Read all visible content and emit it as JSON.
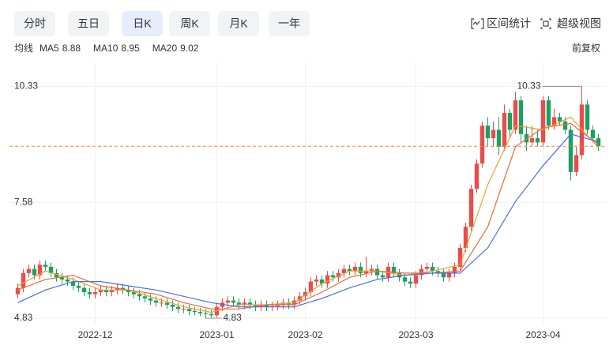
{
  "toolbar": {
    "tabs": [
      "分时",
      "五日",
      "日K",
      "周K",
      "月K",
      "一年"
    ],
    "active": 2,
    "tools": [
      "区间统计",
      "超级视图"
    ]
  },
  "ma_label": "均线",
  "adjust_label": "前复权",
  "chart_data": {
    "type": "candlestick",
    "up_color": "#ea4b4b",
    "down_color": "#1d9f63",
    "open": [
      5.4,
      5.55,
      5.9,
      6.0,
      5.85,
      6.1,
      6.05,
      5.9,
      5.8,
      5.75,
      5.7,
      5.6,
      5.55,
      5.45,
      5.4,
      5.45,
      5.5,
      5.45,
      5.5,
      5.55,
      5.5,
      5.45,
      5.4,
      5.35,
      5.3,
      5.25,
      5.2,
      5.2,
      5.15,
      5.1,
      5.05,
      5.05,
      5.0,
      4.98,
      4.95,
      4.93,
      4.9,
      5.1,
      5.2,
      5.25,
      5.2,
      5.15,
      5.2,
      5.15,
      5.1,
      5.15,
      5.1,
      5.12,
      5.15,
      5.2,
      5.15,
      5.25,
      5.35,
      5.45,
      5.7,
      5.75,
      5.65,
      5.85,
      5.8,
      5.9,
      6.0,
      5.95,
      6.05,
      5.9,
      5.95,
      6.0,
      5.85,
      5.8,
      6.05,
      5.9,
      5.8,
      5.7,
      5.65,
      5.85,
      6.0,
      6.05,
      5.95,
      5.9,
      5.8,
      5.9,
      6.05,
      6.5,
      7.0,
      7.9,
      8.5,
      9.4,
      9.1,
      9.3,
      8.9,
      9.7,
      9.3,
      10.0,
      9.2,
      9.0,
      9.1,
      9.0,
      10.0,
      9.4,
      9.6,
      9.5,
      9.3,
      8.3,
      8.7,
      9.9,
      9.3,
      9.1
    ],
    "high": [
      5.65,
      6.0,
      6.1,
      6.1,
      6.2,
      6.2,
      6.15,
      6.0,
      5.9,
      5.85,
      5.8,
      5.7,
      5.65,
      5.55,
      5.55,
      5.6,
      5.6,
      5.6,
      5.65,
      5.65,
      5.6,
      5.55,
      5.5,
      5.45,
      5.4,
      5.35,
      5.3,
      5.3,
      5.25,
      5.2,
      5.15,
      5.15,
      5.1,
      5.08,
      5.05,
      5.03,
      5.2,
      5.3,
      5.35,
      5.35,
      5.3,
      5.3,
      5.3,
      5.25,
      5.25,
      5.25,
      5.22,
      5.25,
      5.3,
      5.3,
      5.35,
      5.45,
      5.55,
      5.8,
      5.85,
      5.85,
      5.95,
      5.95,
      6.0,
      6.1,
      6.1,
      6.15,
      6.15,
      6.3,
      6.1,
      6.1,
      5.95,
      6.15,
      6.15,
      6.0,
      5.9,
      5.8,
      5.95,
      6.1,
      6.15,
      6.15,
      6.05,
      6.0,
      6.0,
      6.15,
      6.6,
      7.1,
      8.0,
      8.6,
      9.5,
      9.6,
      9.5,
      9.6,
      9.9,
      9.8,
      10.2,
      10.1,
      9.4,
      9.4,
      9.3,
      10.1,
      10.1,
      9.8,
      9.7,
      9.6,
      9.4,
      8.9,
      10.33,
      10.0,
      9.4,
      9.2
    ],
    "low": [
      5.3,
      5.45,
      5.8,
      5.75,
      5.75,
      5.95,
      5.8,
      5.7,
      5.65,
      5.6,
      5.5,
      5.45,
      5.35,
      5.3,
      5.3,
      5.35,
      5.35,
      5.35,
      5.4,
      5.4,
      5.35,
      5.3,
      5.25,
      5.2,
      5.15,
      5.1,
      5.1,
      5.05,
      5.0,
      4.95,
      4.95,
      4.9,
      4.9,
      4.88,
      4.83,
      4.85,
      4.85,
      5.0,
      5.1,
      5.1,
      5.05,
      5.05,
      5.05,
      5.0,
      5.0,
      5.0,
      5.0,
      5.02,
      5.05,
      5.05,
      5.05,
      5.15,
      5.25,
      5.35,
      5.6,
      5.55,
      5.55,
      5.7,
      5.7,
      5.8,
      5.85,
      5.85,
      5.8,
      5.8,
      5.85,
      5.75,
      5.7,
      5.7,
      5.8,
      5.7,
      5.6,
      5.55,
      5.55,
      5.75,
      5.9,
      5.85,
      5.8,
      5.7,
      5.7,
      5.8,
      5.95,
      6.4,
      6.9,
      7.8,
      8.4,
      8.9,
      8.9,
      8.7,
      8.8,
      9.1,
      9.2,
      9.0,
      8.8,
      8.9,
      8.9,
      8.9,
      9.3,
      9.3,
      9.4,
      9.2,
      8.1,
      8.2,
      8.6,
      9.2,
      9.0,
      8.8
    ],
    "close": [
      5.55,
      5.9,
      6.0,
      5.85,
      6.1,
      6.05,
      5.9,
      5.8,
      5.75,
      5.7,
      5.6,
      5.55,
      5.45,
      5.4,
      5.45,
      5.5,
      5.45,
      5.5,
      5.55,
      5.5,
      5.45,
      5.4,
      5.35,
      5.3,
      5.25,
      5.2,
      5.2,
      5.15,
      5.1,
      5.05,
      5.05,
      5.0,
      4.98,
      4.95,
      4.93,
      4.9,
      5.1,
      5.2,
      5.25,
      5.2,
      5.15,
      5.2,
      5.15,
      5.1,
      5.15,
      5.1,
      5.12,
      5.15,
      5.2,
      5.15,
      5.25,
      5.35,
      5.45,
      5.7,
      5.75,
      5.65,
      5.85,
      5.8,
      5.9,
      6.0,
      5.95,
      6.05,
      5.9,
      5.95,
      6.0,
      5.85,
      5.8,
      6.05,
      5.9,
      5.8,
      5.7,
      5.65,
      5.85,
      6.0,
      6.05,
      5.95,
      5.9,
      5.8,
      5.9,
      6.05,
      6.5,
      7.0,
      7.9,
      8.5,
      9.4,
      9.1,
      9.3,
      8.9,
      9.7,
      9.3,
      10.0,
      9.2,
      9.0,
      9.1,
      9.0,
      10.0,
      9.4,
      9.6,
      9.5,
      9.3,
      8.3,
      8.7,
      9.9,
      9.3,
      9.1,
      8.91
    ],
    "series": [
      {
        "name": "MA5",
        "latest": 8.88,
        "color": "#f0a030",
        "x": [
          0,
          5,
          10,
          15,
          20,
          25,
          30,
          35,
          40,
          45,
          50,
          55,
          60,
          65,
          70,
          75,
          80,
          85,
          90,
          95,
          100,
          105
        ],
        "values": [
          5.6,
          5.95,
          5.75,
          5.5,
          5.5,
          5.3,
          5.1,
          4.97,
          5.15,
          5.15,
          5.2,
          5.65,
          5.95,
          5.95,
          5.85,
          5.95,
          6.1,
          8.0,
          9.4,
          9.3,
          9.6,
          8.88
        ]
      },
      {
        "name": "MA10",
        "latest": 8.95,
        "color": "#ec6a35",
        "x": [
          0,
          5,
          10,
          15,
          20,
          25,
          30,
          35,
          40,
          45,
          50,
          55,
          60,
          65,
          70,
          75,
          80,
          85,
          90,
          95,
          100,
          105
        ],
        "values": [
          5.5,
          5.75,
          5.85,
          5.6,
          5.5,
          5.4,
          5.2,
          5.05,
          5.05,
          5.15,
          5.15,
          5.45,
          5.8,
          5.95,
          5.9,
          5.9,
          5.95,
          7.0,
          8.9,
          9.35,
          9.45,
          8.95
        ]
      },
      {
        "name": "MA20",
        "latest": 9.02,
        "color": "#4a6fe3",
        "x": [
          0,
          5,
          10,
          15,
          20,
          25,
          30,
          35,
          40,
          45,
          50,
          55,
          60,
          65,
          70,
          75,
          80,
          85,
          90,
          95,
          100,
          105
        ],
        "values": [
          5.2,
          5.5,
          5.7,
          5.7,
          5.6,
          5.5,
          5.35,
          5.2,
          5.1,
          5.1,
          5.1,
          5.3,
          5.55,
          5.75,
          5.85,
          5.9,
          5.9,
          6.5,
          7.6,
          8.45,
          9.2,
          9.02
        ]
      }
    ],
    "ylim": [
      4.7,
      10.9
    ],
    "yticks": [
      4.83,
      7.58,
      10.33
    ],
    "xlim": [
      -1.5,
      106.5
    ],
    "xticks": [
      {
        "value": 14,
        "label": "2022-12"
      },
      {
        "value": 36,
        "label": "2023-01"
      },
      {
        "value": 52,
        "label": "2023-02"
      },
      {
        "value": 72,
        "label": "2023-03"
      },
      {
        "value": 95,
        "label": "2023-04"
      }
    ],
    "grid": true,
    "max_marker": {
      "index": 102,
      "value": 10.33
    },
    "min_marker": {
      "index": 34,
      "value": 4.83
    },
    "last_price": 8.91,
    "last_price_color": "#f08a30"
  }
}
